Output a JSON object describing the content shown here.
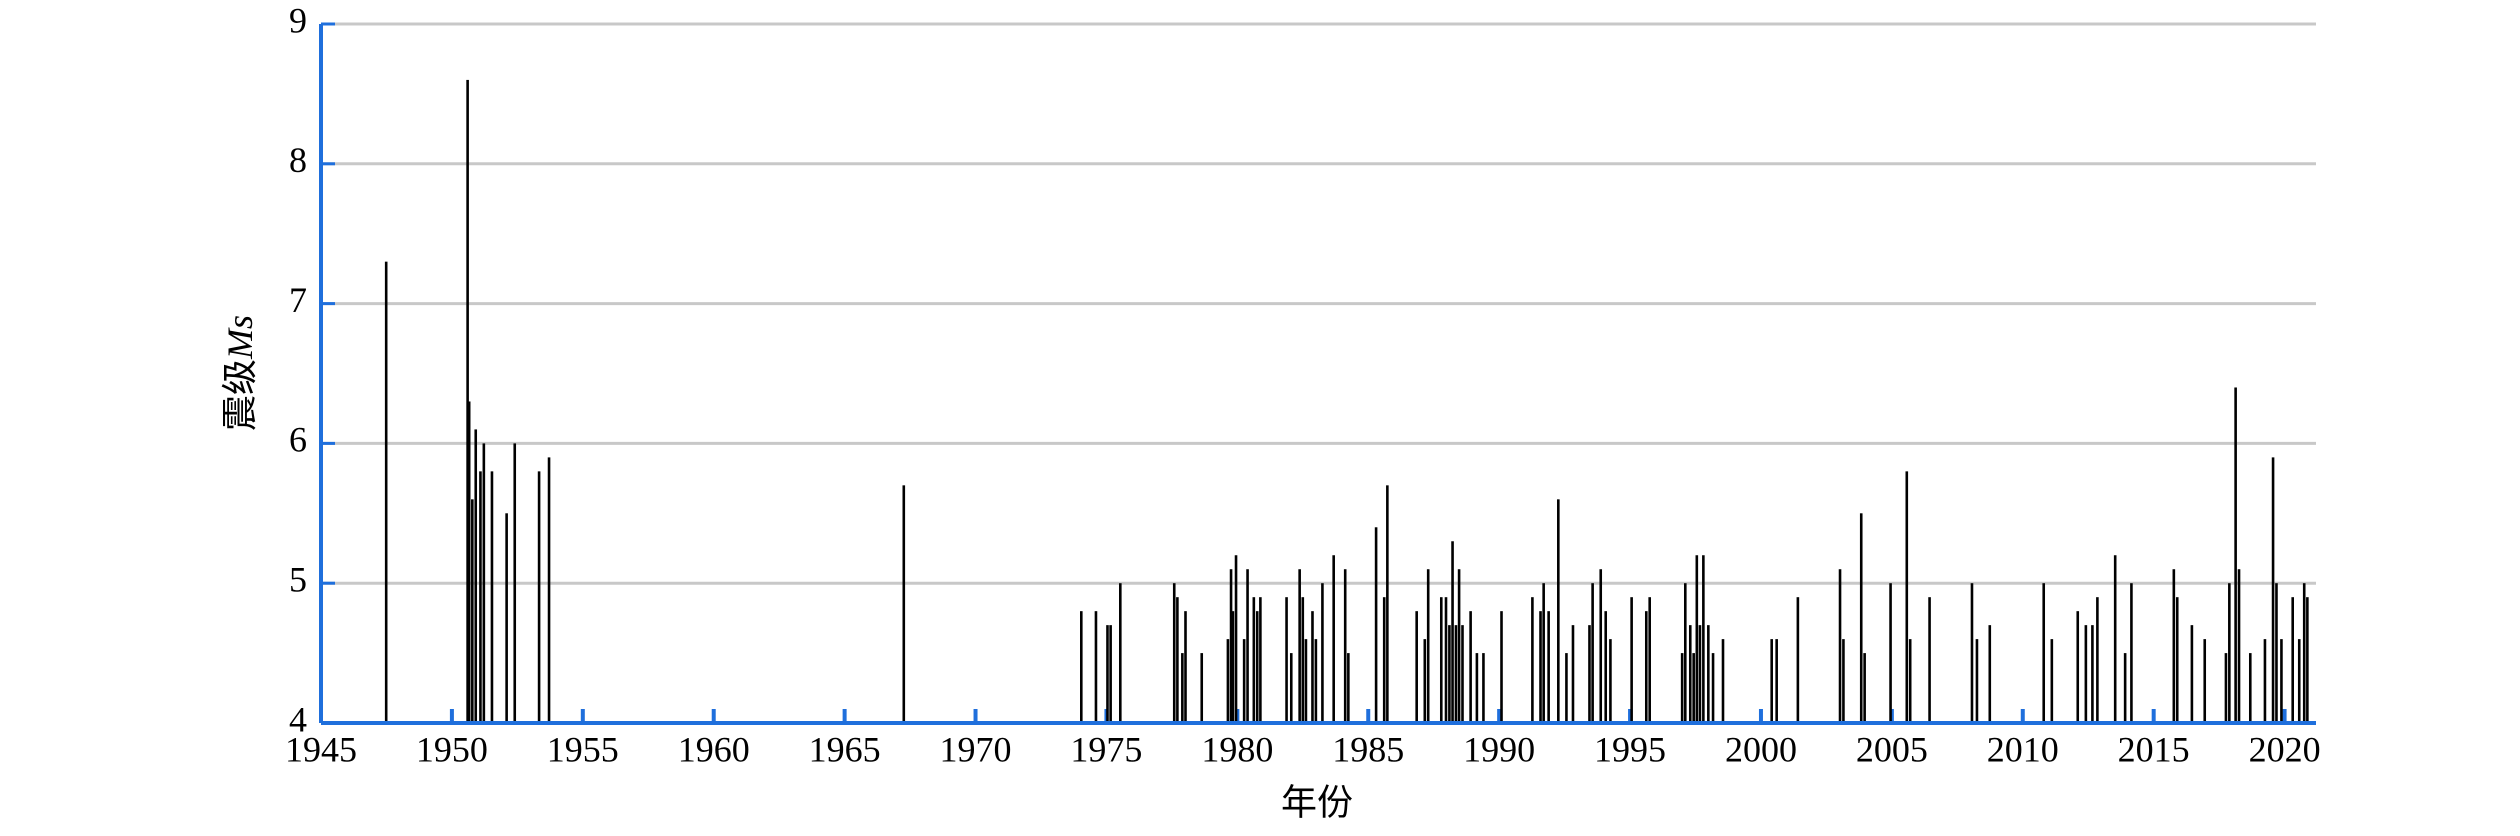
{
  "chart_data": {
    "type": "bar",
    "x_label": "年份",
    "y_label": "震级",
    "y_label_italic": "Ms",
    "x": [
      1947.49,
      1950.6,
      1950.66,
      1950.78,
      1950.91,
      1951.09,
      1951.22,
      1951.53,
      1952.09,
      1952.4,
      1953.33,
      1953.71,
      1967.26,
      1974.04,
      1974.6,
      1975.04,
      1975.16,
      1975.53,
      1977.59,
      1977.71,
      1977.9,
      1978.02,
      1978.64,
      1979.64,
      1979.76,
      1979.83,
      1979.95,
      1980.26,
      1980.39,
      1980.63,
      1980.76,
      1980.88,
      1981.88,
      1982.06,
      1982.38,
      1982.5,
      1982.62,
      1982.87,
      1983.0,
      1983.25,
      1983.68,
      1984.12,
      1984.24,
      1985.3,
      1985.61,
      1985.73,
      1986.85,
      1987.16,
      1987.29,
      1987.79,
      1987.97,
      1988.1,
      1988.22,
      1988.35,
      1988.47,
      1988.6,
      1988.91,
      1989.15,
      1989.4,
      1990.09,
      1991.27,
      1991.58,
      1991.7,
      1991.89,
      1992.26,
      1992.57,
      1992.82,
      1993.45,
      1993.57,
      1993.88,
      1994.07,
      1994.25,
      1995.06,
      1995.62,
      1995.75,
      1996.99,
      1997.11,
      1997.3,
      1997.43,
      1997.55,
      1997.67,
      1997.8,
      1997.99,
      1998.17,
      1998.55,
      2000.41,
      2000.6,
      2001.41,
      2003.02,
      2003.15,
      2003.83,
      2003.96,
      2004.95,
      2005.57,
      2005.7,
      2006.44,
      2008.06,
      2008.25,
      2008.74,
      2010.8,
      2011.11,
      2012.1,
      2012.41,
      2012.66,
      2012.85,
      2013.53,
      2013.91,
      2014.15,
      2015.77,
      2015.9,
      2016.46,
      2016.95,
      2017.76,
      2017.89,
      2018.13,
      2018.26,
      2018.69,
      2019.25,
      2019.56,
      2019.69,
      2019.88,
      2020.31,
      2020.56,
      2020.75,
      2020.87
    ],
    "values": [
      7.3,
      8.6,
      6.3,
      5.6,
      6.1,
      5.8,
      6.0,
      5.8,
      5.5,
      6.0,
      5.8,
      5.9,
      5.7,
      4.8,
      4.8,
      4.7,
      4.7,
      5.0,
      5.0,
      4.9,
      4.5,
      4.8,
      4.5,
      4.6,
      5.1,
      4.8,
      5.2,
      4.6,
      5.1,
      4.9,
      4.8,
      4.9,
      4.9,
      4.5,
      5.1,
      4.9,
      4.6,
      4.8,
      4.6,
      5.0,
      5.2,
      5.1,
      4.5,
      5.4,
      4.9,
      5.7,
      4.8,
      4.6,
      5.1,
      4.9,
      4.9,
      4.7,
      5.3,
      4.7,
      5.1,
      4.7,
      4.8,
      4.5,
      4.5,
      4.8,
      4.9,
      4.8,
      5.0,
      4.8,
      5.6,
      4.5,
      4.7,
      4.7,
      5.0,
      5.1,
      4.8,
      4.6,
      4.9,
      4.8,
      4.9,
      4.5,
      5.0,
      4.7,
      4.5,
      5.2,
      4.7,
      5.2,
      4.7,
      4.5,
      4.6,
      4.6,
      4.6,
      4.9,
      5.1,
      4.6,
      5.5,
      4.5,
      5.0,
      5.8,
      4.6,
      4.9,
      5.0,
      4.6,
      4.7,
      5.0,
      4.6,
      4.8,
      4.7,
      4.7,
      4.9,
      5.2,
      4.5,
      5.0,
      5.1,
      4.9,
      4.7,
      4.6,
      4.5,
      5.0,
      6.4,
      5.1,
      4.5,
      4.6,
      5.9,
      5.0,
      4.6,
      4.9,
      4.6,
      5.0,
      4.9
    ],
    "color": "#000000",
    "axis_color": "#1f6fdc",
    "grid": true,
    "xlim": [
      1945,
      2021.2
    ],
    "xticks": [
      1945,
      1950,
      1955,
      1960,
      1965,
      1970,
      1975,
      1980,
      1985,
      1990,
      1995,
      2000,
      2005,
      2010,
      2015,
      2020
    ],
    "ylim": [
      4,
      9
    ],
    "yticks": [
      4,
      5,
      6,
      7,
      8,
      9
    ]
  }
}
